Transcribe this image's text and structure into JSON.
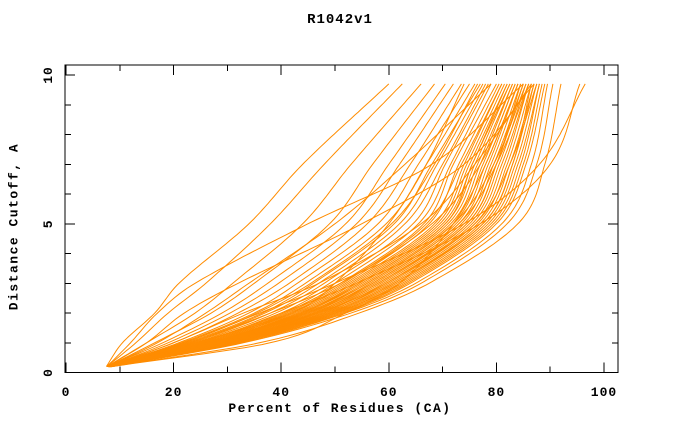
{
  "title": "R1042v1",
  "axes": {
    "xlabel": "Percent of Residues (CA)",
    "ylabel": "Distance Cutoff, A",
    "x_ticks": [
      0,
      20,
      40,
      60,
      80,
      100
    ],
    "y_ticks": [
      0,
      5,
      10
    ],
    "x_minor_step": 10,
    "y_minor_step": 1,
    "xlim": [
      0,
      100
    ],
    "ylim": [
      0,
      10
    ]
  },
  "colors": {
    "curve": "#FF8C00",
    "axis": "#000000",
    "background": "#FFFFFF",
    "text": "#000000"
  },
  "chart_data": {
    "type": "line",
    "title": "R1042v1",
    "xlabel": "Percent of Residues (CA)",
    "ylabel": "Distance Cutoff, A",
    "xlim": [
      0,
      100
    ],
    "ylim": [
      0,
      10
    ],
    "grid": false,
    "legend": "none",
    "line_color": "#FF8C00",
    "knot_cutoffs": [
      0.2,
      1,
      2,
      3,
      5,
      7,
      9.7
    ],
    "curves": [
      [
        7.5,
        10.5,
        16.5,
        21,
        34,
        44,
        60
      ],
      [
        7.6,
        13,
        19,
        26,
        38,
        48,
        62.5
      ],
      [
        7.6,
        15,
        24,
        31,
        44,
        53,
        66
      ],
      [
        7.7,
        16.5,
        27,
        35,
        49,
        57,
        68.5
      ],
      [
        7.7,
        18,
        29,
        37.5,
        52,
        60,
        70.5
      ],
      [
        7.8,
        19,
        30.5,
        39.5,
        54,
        62,
        72
      ],
      [
        7.8,
        20,
        32,
        41.5,
        56,
        64,
        73.5
      ],
      [
        7.8,
        21,
        34,
        43,
        58,
        65.5,
        75
      ],
      [
        7.9,
        21.5,
        35,
        44.5,
        59.5,
        67,
        76
      ],
      [
        7.9,
        22.5,
        36.5,
        46,
        61,
        68,
        77
      ],
      [
        7.9,
        23,
        37,
        47,
        62,
        69,
        77.5
      ],
      [
        7.9,
        23.5,
        38,
        48,
        63,
        70,
        78
      ],
      [
        8,
        24,
        39,
        49,
        64.5,
        70.5,
        78.5
      ],
      [
        8,
        24.5,
        40,
        50,
        65.5,
        71.5,
        79
      ],
      [
        8,
        25,
        40.5,
        51,
        66.5,
        72,
        80
      ],
      [
        8,
        25.5,
        41.5,
        52,
        67.5,
        73,
        80.5
      ],
      [
        8.1,
        26,
        42,
        52.5,
        68.5,
        74,
        81
      ],
      [
        8.1,
        26,
        42.5,
        53,
        69,
        74.5,
        81.5
      ],
      [
        8.1,
        26.5,
        43,
        53.5,
        69.5,
        75,
        82
      ],
      [
        8.1,
        27,
        43.5,
        54,
        70,
        75.5,
        82
      ],
      [
        8.1,
        27,
        44,
        54.5,
        70.5,
        76,
        82.5
      ],
      [
        8.1,
        27.5,
        44,
        55,
        71,
        76.5,
        83
      ],
      [
        8.1,
        27.5,
        44.5,
        55.5,
        71.5,
        77,
        83
      ],
      [
        8.2,
        28,
        45,
        56,
        72,
        77.5,
        83.5
      ],
      [
        8.2,
        28,
        45.5,
        56.5,
        72.5,
        78,
        84
      ],
      [
        8.2,
        28.5,
        46,
        57,
        73,
        78.5,
        84
      ],
      [
        8.2,
        28.5,
        46,
        57.5,
        73.5,
        79,
        84.5
      ],
      [
        8.2,
        29,
        46.5,
        58,
        74,
        79.5,
        85
      ],
      [
        8.2,
        29,
        47,
        58.5,
        74.5,
        80,
        85
      ],
      [
        8.2,
        29.5,
        47.5,
        59,
        75,
        80.5,
        85.5
      ],
      [
        8.3,
        29.5,
        48,
        59.5,
        75.5,
        81,
        86
      ],
      [
        8.3,
        30,
        48,
        60,
        76,
        81.5,
        86
      ],
      [
        8.3,
        30,
        48.5,
        60.5,
        76.5,
        82,
        86.5
      ],
      [
        8.3,
        30.5,
        49,
        61,
        77,
        82.5,
        87
      ],
      [
        8.3,
        30.5,
        49.5,
        61.5,
        77.5,
        83,
        87
      ],
      [
        8.3,
        31,
        50,
        62,
        78,
        83.5,
        87.5
      ],
      [
        8.4,
        31,
        50,
        62.5,
        78.5,
        84,
        88
      ],
      [
        8.4,
        31.5,
        50.5,
        63,
        79,
        84.5,
        88
      ],
      [
        8.4,
        31.5,
        51,
        63.5,
        79.5,
        85,
        88.5
      ],
      [
        8.4,
        32,
        51.5,
        64,
        80,
        85.5,
        89
      ],
      [
        8.4,
        32.5,
        52,
        65,
        81,
        86.5,
        89.5
      ],
      [
        8.5,
        33,
        53,
        66,
        82,
        87.5,
        90.5
      ],
      [
        8.5,
        36,
        54.5,
        67.5,
        84,
        89,
        92
      ],
      [
        7.8,
        24,
        42,
        50,
        60,
        67,
        74
      ],
      [
        7.7,
        15,
        22,
        32,
        55,
        74,
        87
      ],
      [
        7.6,
        12,
        17,
        24,
        45,
        68,
        85
      ],
      [
        8,
        22,
        36,
        50,
        74,
        88,
        96.5
      ],
      [
        8.1,
        25,
        40,
        54,
        77,
        90,
        95.5
      ],
      [
        7.9,
        20,
        33,
        47,
        66,
        76,
        86.5
      ],
      [
        8.5,
        38,
        52,
        62,
        72,
        78,
        84
      ],
      [
        8,
        23,
        38,
        51,
        68,
        77,
        83.5
      ],
      [
        7.8,
        17,
        26,
        34,
        50,
        63,
        79
      ],
      [
        8.2,
        28,
        45,
        57,
        73,
        80,
        86
      ],
      [
        8.3,
        29.5,
        47,
        59.5,
        76,
        82.5,
        87.5
      ],
      [
        8.2,
        27.5,
        44.5,
        56,
        72,
        79.5,
        85.5
      ],
      [
        8.1,
        26.5,
        43.5,
        54.5,
        70.5,
        75.5,
        82.5
      ],
      [
        8.2,
        28.5,
        46.5,
        58,
        74.5,
        80,
        84.5
      ],
      [
        8,
        25.5,
        41,
        51.5,
        67,
        73.5,
        81
      ],
      [
        8.3,
        30,
        49,
        61,
        77.5,
        83,
        86.5
      ],
      [
        7.9,
        22,
        35.5,
        45.5,
        60.5,
        68.5,
        76.5
      ]
    ]
  }
}
